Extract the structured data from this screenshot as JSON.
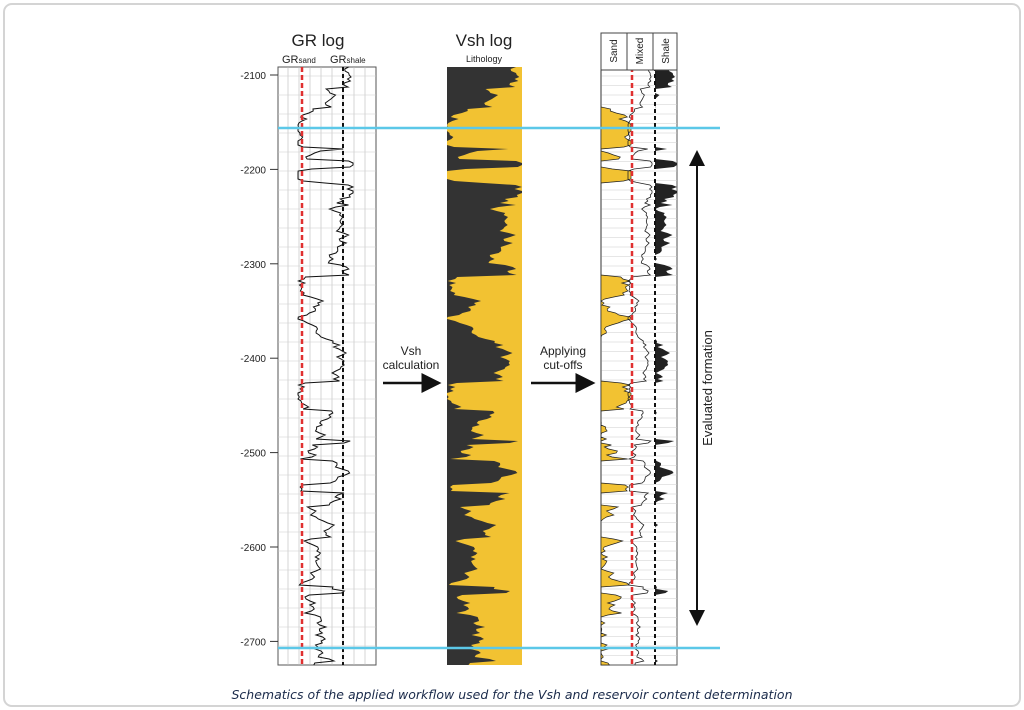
{
  "gr_log": {
    "title": "GR log",
    "gr_sand": {
      "base": "GR",
      "sub": "sand"
    },
    "gr_shale": {
      "base": "GR",
      "sub": "shale"
    },
    "depth_labels": [
      "-2100",
      "-2200",
      "-2300",
      "-2400",
      "-2500",
      "-2600",
      "-2700"
    ]
  },
  "vsh_log": {
    "title": "Vsh log",
    "subtitle": "Lithology"
  },
  "content_log": {
    "columns": [
      "Sand",
      "Mixed",
      "Shale"
    ]
  },
  "arrows": {
    "vsh": [
      "Vsh",
      "calculation"
    ],
    "cutoffs": [
      "Applying",
      "cut-offs"
    ]
  },
  "evaluated": "Evaluated formation",
  "caption": "Schematics of the applied workflow used for the Vsh and reservoir content determination"
}
